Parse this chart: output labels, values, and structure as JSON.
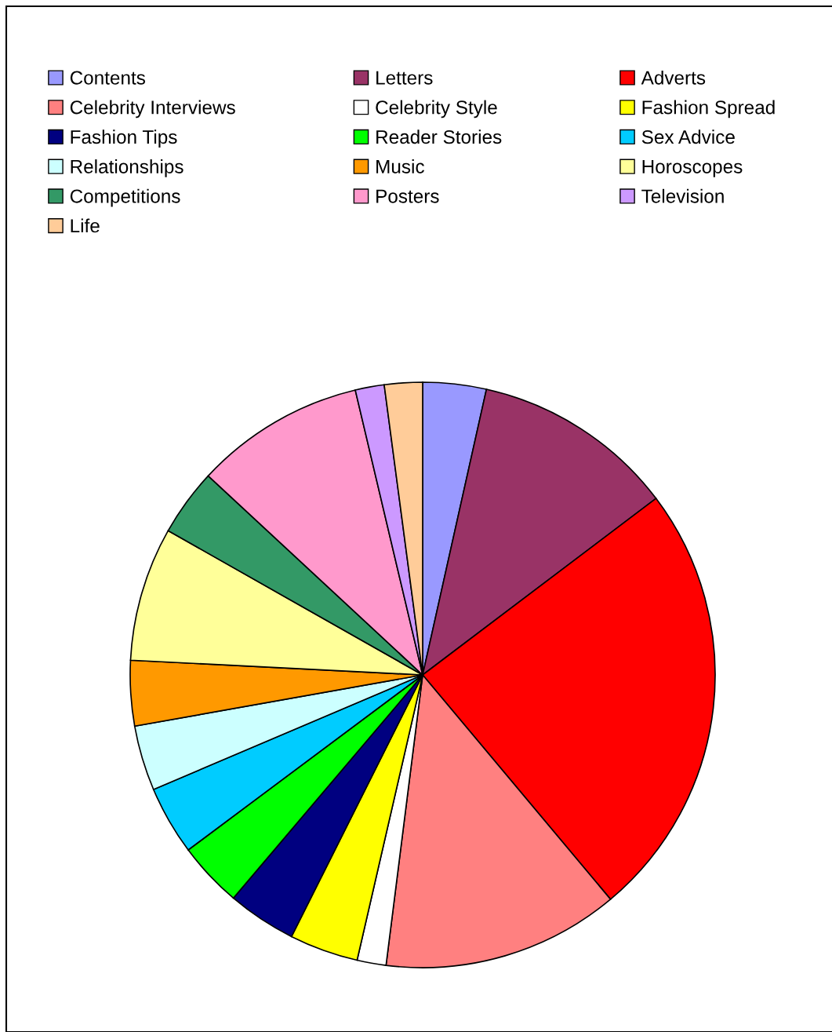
{
  "chart_data": {
    "type": "pie",
    "legend": "top",
    "categories": [
      "Contents",
      "Letters",
      "Adverts",
      "Celebrity Interviews",
      "Celebrity Style",
      "Fashion Spread",
      "Fashion Tips",
      "Reader Stories",
      "Sex Advice",
      "Relationships",
      "Music",
      "Horoscopes",
      "Competitions",
      "Posters",
      "Television",
      "Life"
    ],
    "values": [
      3.5,
      11.2,
      24.2,
      13.1,
      1.6,
      3.8,
      3.8,
      3.6,
      3.8,
      3.6,
      3.6,
      7.4,
      3.7,
      9.4,
      1.6,
      2.1
    ],
    "colors": [
      "#9999ff",
      "#993366",
      "#ff0000",
      "#ff8080",
      "#ffffff",
      "#ffff00",
      "#000080",
      "#00ff00",
      "#00ccff",
      "#ccffff",
      "#ff9900",
      "#ffff99",
      "#339966",
      "#ff99cc",
      "#cc99ff",
      "#ffcc99"
    ]
  }
}
